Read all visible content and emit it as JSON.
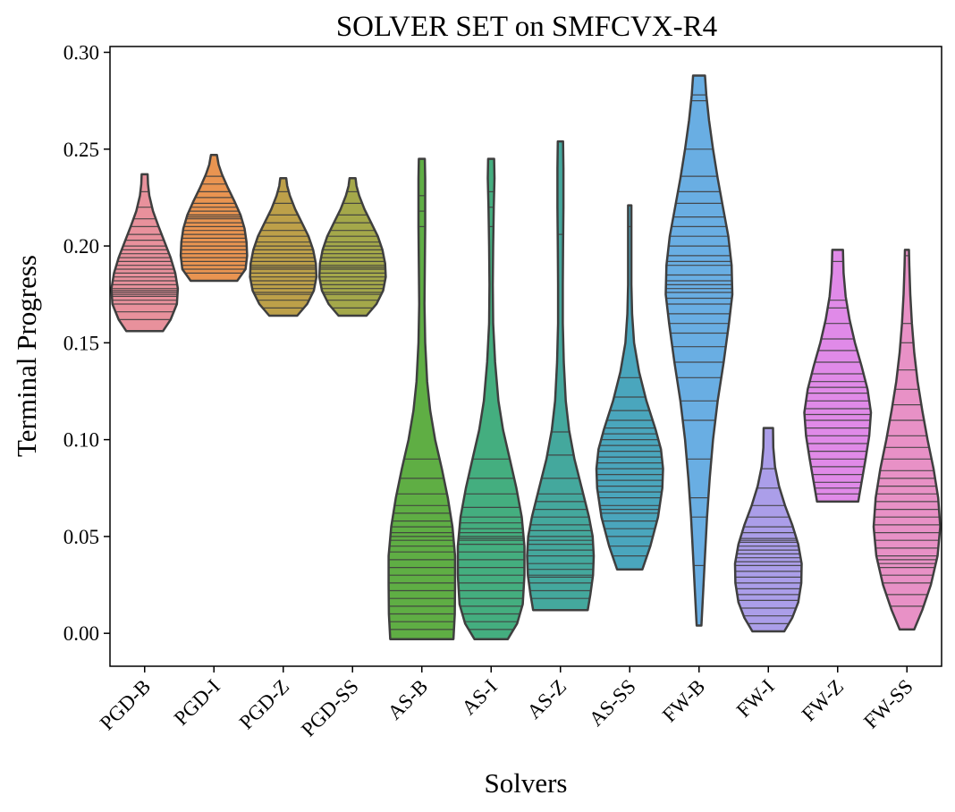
{
  "chart_data": {
    "type": "violin",
    "title": "SOLVER SET on SMFCVX-R4",
    "xlabel": "Solvers",
    "ylabel": "Terminal Progress",
    "ylim": [
      -0.017,
      0.303
    ],
    "yticks": [
      "0.00",
      "0.05",
      "0.10",
      "0.15",
      "0.20",
      "0.25",
      "0.30"
    ],
    "ytick_values": [
      0,
      0.05,
      0.1,
      0.15,
      0.2,
      0.25,
      0.3
    ],
    "inner": "stick",
    "grid": false,
    "categories": [
      "PGD-B",
      "PGD-I",
      "PGD-Z",
      "PGD-SS",
      "AS-B",
      "AS-I",
      "AS-Z",
      "AS-SS",
      "FW-B",
      "FW-I",
      "FW-Z",
      "FW-SS"
    ],
    "series": [
      {
        "category": "PGD-B",
        "color": "#e8919c",
        "min": 0.156,
        "max": 0.237,
        "profile": [
          [
            0.156,
            0.55
          ],
          [
            0.162,
            0.78
          ],
          [
            0.17,
            0.97
          ],
          [
            0.178,
            1.0
          ],
          [
            0.186,
            0.92
          ],
          [
            0.194,
            0.78
          ],
          [
            0.202,
            0.6
          ],
          [
            0.21,
            0.42
          ],
          [
            0.218,
            0.25
          ],
          [
            0.226,
            0.14
          ],
          [
            0.232,
            0.1
          ],
          [
            0.237,
            0.09
          ]
        ],
        "observations": [
          0.162,
          0.166,
          0.17,
          0.172,
          0.174,
          0.175,
          0.176,
          0.177,
          0.178,
          0.18,
          0.182,
          0.184,
          0.186,
          0.188,
          0.19,
          0.192,
          0.194,
          0.196,
          0.198,
          0.2,
          0.203,
          0.206,
          0.21,
          0.214,
          0.22,
          0.228
        ]
      },
      {
        "category": "PGD-I",
        "color": "#e99451",
        "min": 0.182,
        "max": 0.247,
        "profile": [
          [
            0.182,
            0.7
          ],
          [
            0.188,
            0.95
          ],
          [
            0.195,
            1.0
          ],
          [
            0.202,
            0.98
          ],
          [
            0.209,
            0.92
          ],
          [
            0.216,
            0.8
          ],
          [
            0.223,
            0.62
          ],
          [
            0.23,
            0.42
          ],
          [
            0.237,
            0.24
          ],
          [
            0.242,
            0.14
          ],
          [
            0.247,
            0.09
          ]
        ],
        "observations": [
          0.186,
          0.188,
          0.19,
          0.192,
          0.194,
          0.196,
          0.198,
          0.2,
          0.202,
          0.204,
          0.206,
          0.208,
          0.21,
          0.212,
          0.214,
          0.215,
          0.216,
          0.218,
          0.22,
          0.222,
          0.225,
          0.228,
          0.232,
          0.236
        ]
      },
      {
        "category": "PGD-Z",
        "color": "#bda049",
        "min": 0.164,
        "max": 0.235,
        "profile": [
          [
            0.164,
            0.42
          ],
          [
            0.17,
            0.72
          ],
          [
            0.177,
            0.92
          ],
          [
            0.184,
            1.0
          ],
          [
            0.191,
            0.98
          ],
          [
            0.198,
            0.9
          ],
          [
            0.205,
            0.76
          ],
          [
            0.212,
            0.56
          ],
          [
            0.219,
            0.36
          ],
          [
            0.226,
            0.2
          ],
          [
            0.231,
            0.12
          ],
          [
            0.235,
            0.09
          ]
        ],
        "observations": [
          0.168,
          0.172,
          0.175,
          0.176,
          0.178,
          0.18,
          0.182,
          0.184,
          0.186,
          0.188,
          0.189,
          0.19,
          0.192,
          0.194,
          0.196,
          0.198,
          0.2,
          0.202,
          0.205,
          0.208,
          0.212,
          0.216,
          0.222,
          0.228
        ]
      },
      {
        "category": "PGD-SS",
        "color": "#a4a84a",
        "min": 0.164,
        "max": 0.235,
        "profile": [
          [
            0.164,
            0.42
          ],
          [
            0.17,
            0.72
          ],
          [
            0.177,
            0.92
          ],
          [
            0.184,
            1.0
          ],
          [
            0.191,
            0.98
          ],
          [
            0.198,
            0.9
          ],
          [
            0.205,
            0.76
          ],
          [
            0.212,
            0.56
          ],
          [
            0.219,
            0.36
          ],
          [
            0.226,
            0.2
          ],
          [
            0.231,
            0.12
          ],
          [
            0.235,
            0.09
          ]
        ],
        "observations": [
          0.168,
          0.172,
          0.175,
          0.176,
          0.178,
          0.18,
          0.182,
          0.184,
          0.186,
          0.188,
          0.189,
          0.19,
          0.192,
          0.194,
          0.196,
          0.198,
          0.2,
          0.202,
          0.205,
          0.208,
          0.212,
          0.216,
          0.222,
          0.228
        ]
      },
      {
        "category": "AS-B",
        "color": "#5fae44",
        "min": -0.003,
        "max": 0.245,
        "profile": [
          [
            -0.003,
            0.95
          ],
          [
            0.01,
            0.99
          ],
          [
            0.025,
            1.0
          ],
          [
            0.04,
            1.0
          ],
          [
            0.055,
            0.92
          ],
          [
            0.07,
            0.78
          ],
          [
            0.085,
            0.6
          ],
          [
            0.1,
            0.4
          ],
          [
            0.115,
            0.25
          ],
          [
            0.13,
            0.16
          ],
          [
            0.15,
            0.1
          ],
          [
            0.17,
            0.08
          ],
          [
            0.19,
            0.09
          ],
          [
            0.21,
            0.1
          ],
          [
            0.225,
            0.1
          ],
          [
            0.235,
            0.1
          ],
          [
            0.245,
            0.09
          ]
        ],
        "observations": [
          0.002,
          0.006,
          0.01,
          0.014,
          0.018,
          0.022,
          0.026,
          0.03,
          0.034,
          0.038,
          0.042,
          0.045,
          0.048,
          0.05,
          0.052,
          0.055,
          0.058,
          0.062,
          0.066,
          0.072,
          0.08,
          0.09,
          0.21,
          0.218,
          0.226
        ]
      },
      {
        "category": "AS-I",
        "color": "#44ae7f",
        "min": -0.003,
        "max": 0.245,
        "profile": [
          [
            -0.003,
            0.5
          ],
          [
            0.005,
            0.78
          ],
          [
            0.015,
            0.95
          ],
          [
            0.03,
            1.0
          ],
          [
            0.045,
            1.0
          ],
          [
            0.06,
            0.92
          ],
          [
            0.075,
            0.76
          ],
          [
            0.09,
            0.56
          ],
          [
            0.105,
            0.36
          ],
          [
            0.12,
            0.22
          ],
          [
            0.14,
            0.12
          ],
          [
            0.16,
            0.06
          ],
          [
            0.18,
            0.05
          ],
          [
            0.2,
            0.06
          ],
          [
            0.22,
            0.08
          ],
          [
            0.235,
            0.1
          ],
          [
            0.245,
            0.09
          ]
        ],
        "observations": [
          0.002,
          0.006,
          0.01,
          0.014,
          0.018,
          0.022,
          0.026,
          0.03,
          0.034,
          0.038,
          0.042,
          0.046,
          0.048,
          0.049,
          0.05,
          0.052,
          0.054,
          0.057,
          0.06,
          0.065,
          0.072,
          0.08,
          0.09,
          0.21,
          0.22,
          0.228
        ]
      },
      {
        "category": "AS-Z",
        "color": "#44a89d",
        "min": 0.012,
        "max": 0.254,
        "profile": [
          [
            0.012,
            0.82
          ],
          [
            0.02,
            0.9
          ],
          [
            0.03,
            0.98
          ],
          [
            0.04,
            1.0
          ],
          [
            0.05,
            0.97
          ],
          [
            0.06,
            0.86
          ],
          [
            0.075,
            0.64
          ],
          [
            0.09,
            0.42
          ],
          [
            0.105,
            0.26
          ],
          [
            0.12,
            0.16
          ],
          [
            0.14,
            0.1
          ],
          [
            0.16,
            0.07
          ],
          [
            0.18,
            0.07
          ],
          [
            0.2,
            0.08
          ],
          [
            0.22,
            0.09
          ],
          [
            0.24,
            0.09
          ],
          [
            0.254,
            0.08
          ]
        ],
        "observations": [
          0.018,
          0.022,
          0.026,
          0.029,
          0.03,
          0.033,
          0.036,
          0.04,
          0.043,
          0.046,
          0.048,
          0.05,
          0.053,
          0.056,
          0.06,
          0.064,
          0.068,
          0.072,
          0.08,
          0.092,
          0.104,
          0.206
        ]
      },
      {
        "category": "AS-SS",
        "color": "#4aa6bd",
        "min": 0.033,
        "max": 0.221,
        "profile": [
          [
            0.033,
            0.38
          ],
          [
            0.045,
            0.62
          ],
          [
            0.06,
            0.85
          ],
          [
            0.075,
            0.98
          ],
          [
            0.085,
            1.0
          ],
          [
            0.095,
            0.94
          ],
          [
            0.105,
            0.78
          ],
          [
            0.12,
            0.5
          ],
          [
            0.135,
            0.28
          ],
          [
            0.15,
            0.13
          ],
          [
            0.165,
            0.07
          ],
          [
            0.18,
            0.05
          ],
          [
            0.2,
            0.05
          ],
          [
            0.221,
            0.05
          ]
        ],
        "observations": [
          0.04,
          0.045,
          0.05,
          0.054,
          0.058,
          0.062,
          0.064,
          0.066,
          0.07,
          0.073,
          0.076,
          0.079,
          0.082,
          0.085,
          0.088,
          0.091,
          0.094,
          0.097,
          0.1,
          0.103,
          0.106,
          0.11,
          0.115,
          0.122,
          0.132,
          0.21
        ]
      },
      {
        "category": "FW-B",
        "color": "#69aee3",
        "min": 0.004,
        "max": 0.288,
        "profile": [
          [
            0.004,
            0.07
          ],
          [
            0.02,
            0.12
          ],
          [
            0.04,
            0.18
          ],
          [
            0.06,
            0.24
          ],
          [
            0.08,
            0.32
          ],
          [
            0.1,
            0.42
          ],
          [
            0.12,
            0.56
          ],
          [
            0.14,
            0.74
          ],
          [
            0.16,
            0.9
          ],
          [
            0.175,
            1.0
          ],
          [
            0.19,
            0.98
          ],
          [
            0.205,
            0.88
          ],
          [
            0.22,
            0.72
          ],
          [
            0.235,
            0.56
          ],
          [
            0.25,
            0.42
          ],
          [
            0.265,
            0.3
          ],
          [
            0.278,
            0.22
          ],
          [
            0.288,
            0.18
          ]
        ],
        "observations": [
          0.035,
          0.06,
          0.07,
          0.09,
          0.11,
          0.12,
          0.132,
          0.14,
          0.148,
          0.155,
          0.16,
          0.165,
          0.17,
          0.173,
          0.176,
          0.178,
          0.18,
          0.182,
          0.185,
          0.19,
          0.192,
          0.195,
          0.2,
          0.205,
          0.21,
          0.215,
          0.222,
          0.228,
          0.236,
          0.25,
          0.275,
          0.278
        ]
      },
      {
        "category": "FW-I",
        "color": "#ab9ee9",
        "min": 0.001,
        "max": 0.106,
        "profile": [
          [
            0.001,
            0.48
          ],
          [
            0.008,
            0.72
          ],
          [
            0.016,
            0.9
          ],
          [
            0.026,
            0.99
          ],
          [
            0.036,
            1.0
          ],
          [
            0.046,
            0.9
          ],
          [
            0.056,
            0.72
          ],
          [
            0.066,
            0.5
          ],
          [
            0.076,
            0.32
          ],
          [
            0.086,
            0.2
          ],
          [
            0.096,
            0.15
          ],
          [
            0.106,
            0.14
          ]
        ],
        "observations": [
          0.005,
          0.009,
          0.013,
          0.017,
          0.02,
          0.023,
          0.026,
          0.029,
          0.032,
          0.035,
          0.037,
          0.039,
          0.041,
          0.043,
          0.045,
          0.047,
          0.048,
          0.049,
          0.052,
          0.055,
          0.06,
          0.066,
          0.075,
          0.085
        ]
      },
      {
        "category": "FW-Z",
        "color": "#e08ae8",
        "min": 0.068,
        "max": 0.198,
        "profile": [
          [
            0.068,
            0.62
          ],
          [
            0.078,
            0.72
          ],
          [
            0.09,
            0.84
          ],
          [
            0.102,
            0.95
          ],
          [
            0.114,
            1.0
          ],
          [
            0.126,
            0.9
          ],
          [
            0.138,
            0.72
          ],
          [
            0.15,
            0.52
          ],
          [
            0.162,
            0.36
          ],
          [
            0.174,
            0.24
          ],
          [
            0.186,
            0.18
          ],
          [
            0.198,
            0.16
          ]
        ],
        "observations": [
          0.072,
          0.075,
          0.078,
          0.082,
          0.086,
          0.09,
          0.094,
          0.098,
          0.102,
          0.106,
          0.11,
          0.113,
          0.116,
          0.12,
          0.124,
          0.127,
          0.13,
          0.134,
          0.14,
          0.146,
          0.152,
          0.16,
          0.168,
          0.172,
          0.192
        ]
      },
      {
        "category": "FW-SS",
        "color": "#e891c6",
        "min": 0.002,
        "max": 0.198,
        "profile": [
          [
            0.002,
            0.22
          ],
          [
            0.012,
            0.46
          ],
          [
            0.025,
            0.72
          ],
          [
            0.04,
            0.92
          ],
          [
            0.055,
            1.0
          ],
          [
            0.07,
            0.94
          ],
          [
            0.085,
            0.8
          ],
          [
            0.1,
            0.62
          ],
          [
            0.115,
            0.46
          ],
          [
            0.13,
            0.32
          ],
          [
            0.145,
            0.22
          ],
          [
            0.16,
            0.15
          ],
          [
            0.175,
            0.1
          ],
          [
            0.19,
            0.07
          ],
          [
            0.198,
            0.06
          ]
        ],
        "observations": [
          0.014,
          0.02,
          0.026,
          0.03,
          0.034,
          0.036,
          0.038,
          0.04,
          0.044,
          0.048,
          0.052,
          0.056,
          0.06,
          0.064,
          0.068,
          0.072,
          0.076,
          0.08,
          0.084,
          0.09,
          0.096,
          0.102,
          0.11,
          0.118,
          0.126,
          0.136,
          0.15,
          0.16,
          0.195
        ]
      }
    ]
  }
}
